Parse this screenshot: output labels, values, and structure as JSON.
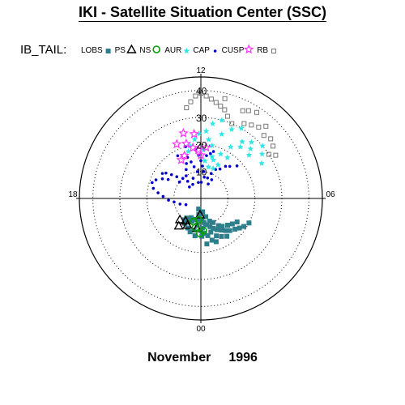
{
  "header": {
    "title": "IKI - Satellite Situation Center (SSC)"
  },
  "footer": {
    "month": "November",
    "year": "1996"
  },
  "chart_data": {
    "type": "scatter",
    "projection": "polar",
    "title": "IKI - Satellite Situation Center (SSC)",
    "legend_title": "IB_TAIL:",
    "legend_placement": "top",
    "radial_ticks": [
      "10",
      "20",
      "30",
      "40"
    ],
    "rlim": [
      0,
      45
    ],
    "grid": true,
    "angle_labels": [
      {
        "text": "12",
        "lt": 12
      },
      {
        "text": "18",
        "lt": 18
      },
      {
        "text": "06",
        "lt": 6
      },
      {
        "text": "00",
        "lt": 0
      }
    ],
    "colors": {
      "LOBS": "#2e7f8c",
      "PS": "#000000",
      "NS": "#00a000",
      "AUR": "#33e6e6",
      "CAP": "#0000c8",
      "CUSP": "#ff33ff",
      "RB": "#777777"
    },
    "series": [
      {
        "name": "LOBS",
        "marker": "square-filled",
        "points": [
          [
            0.8,
            4
          ],
          [
            0.5,
            6
          ],
          [
            0.2,
            8
          ],
          [
            23.8,
            8
          ],
          [
            23.5,
            9
          ],
          [
            23.2,
            10
          ],
          [
            22.8,
            11
          ],
          [
            22.5,
            12
          ],
          [
            22.2,
            13
          ],
          [
            21.8,
            14
          ],
          [
            21.5,
            15
          ],
          [
            21.2,
            16
          ],
          [
            20.8,
            17
          ],
          [
            20.5,
            18
          ],
          [
            20.2,
            19
          ],
          [
            19.8,
            20
          ],
          [
            23.5,
            5
          ],
          [
            23,
            7
          ],
          [
            22.6,
            9
          ],
          [
            22.2,
            10
          ],
          [
            21.8,
            12
          ],
          [
            21.5,
            13
          ],
          [
            21,
            14
          ],
          [
            20.6,
            15
          ],
          [
            20.2,
            16
          ],
          [
            0.5,
            10
          ],
          [
            0.8,
            12
          ],
          [
            1.2,
            13
          ],
          [
            1.6,
            12
          ],
          [
            2,
            10
          ],
          [
            2.4,
            9
          ],
          [
            0,
            12
          ],
          [
            23.6,
            13
          ],
          [
            23.3,
            14
          ],
          [
            23,
            16
          ],
          [
            22.7,
            17
          ],
          [
            0.3,
            6
          ],
          [
            0,
            5
          ],
          [
            23.8,
            11
          ],
          [
            1,
            8
          ],
          [
            1.4,
            9
          ],
          [
            1.8,
            8
          ],
          [
            22.9,
            13
          ],
          [
            22.5,
            15
          ],
          [
            22.1,
            16
          ],
          [
            21.7,
            17
          ],
          [
            0.6,
            14
          ],
          [
            23.9,
            14
          ],
          [
            23.5,
            17
          ],
          [
            2.2,
            11
          ],
          [
            2.5,
            10
          ]
        ]
      },
      {
        "name": "PS",
        "marker": "triangle-open",
        "points": [
          [
            0.5,
            11
          ],
          [
            1.8,
            11
          ],
          [
            2.3,
            10
          ],
          [
            0.2,
            6
          ],
          [
            3,
            11
          ],
          [
            2.6,
            13
          ]
        ]
      },
      {
        "name": "NS",
        "marker": "circle-open",
        "points": [
          [
            0.4,
            8
          ],
          [
            0.1,
            13
          ],
          [
            1.2,
            9
          ],
          [
            23.7,
            12
          ],
          [
            0.7,
            11
          ]
        ]
      },
      {
        "name": "AUR",
        "marker": "star-filled",
        "points": [
          [
            13.5,
            12
          ],
          [
            13.2,
            15
          ],
          [
            13.6,
            18
          ],
          [
            14,
            22
          ],
          [
            14.5,
            24
          ],
          [
            15,
            26
          ],
          [
            13,
            16
          ],
          [
            12.8,
            20
          ],
          [
            13.2,
            25
          ],
          [
            13.6,
            28
          ],
          [
            14,
            30
          ],
          [
            14.4,
            26
          ],
          [
            12.5,
            22
          ],
          [
            12.3,
            25
          ],
          [
            12.6,
            28
          ],
          [
            13,
            30
          ],
          [
            11.9,
            24
          ],
          [
            11.6,
            22
          ],
          [
            11.2,
            20
          ],
          [
            11,
            18
          ],
          [
            12.2,
            18
          ],
          [
            12.4,
            14
          ],
          [
            14.8,
            28
          ],
          [
            15.3,
            30
          ],
          [
            15.6,
            28
          ],
          [
            16,
            26
          ],
          [
            14.2,
            18
          ],
          [
            13.8,
            14
          ],
          [
            12.9,
            12
          ],
          [
            15.2,
            24
          ]
        ]
      },
      {
        "name": "CAP",
        "marker": "dot",
        "points": [
          [
            13.2,
            8
          ],
          [
            13.5,
            10
          ],
          [
            13.8,
            12
          ],
          [
            14.2,
            13
          ],
          [
            14.5,
            15
          ],
          [
            14.8,
            16
          ],
          [
            15.2,
            18
          ],
          [
            12.6,
            8
          ],
          [
            12.4,
            10
          ],
          [
            12.2,
            12
          ],
          [
            12,
            14
          ],
          [
            11.8,
            16
          ],
          [
            11.5,
            10
          ],
          [
            11.2,
            12
          ],
          [
            11,
            14
          ],
          [
            10.8,
            16
          ],
          [
            10.5,
            14
          ],
          [
            10.2,
            12
          ],
          [
            9.8,
            10
          ],
          [
            9.5,
            8
          ],
          [
            9.2,
            10
          ],
          [
            8.8,
            12
          ],
          [
            8.6,
            14
          ],
          [
            8.4,
            16
          ],
          [
            8.2,
            17
          ],
          [
            13.8,
            6
          ],
          [
            14,
            8
          ],
          [
            12.1,
            6
          ],
          [
            11.4,
            6
          ],
          [
            10.6,
            8
          ],
          [
            10,
            6
          ],
          [
            9,
            6
          ],
          [
            8.5,
            10
          ],
          [
            8,
            14
          ],
          [
            7.8,
            16
          ],
          [
            7.5,
            18
          ],
          [
            7.2,
            19
          ],
          [
            6.8,
            18
          ],
          [
            6.5,
            16
          ],
          [
            6.2,
            14
          ],
          [
            5.8,
            12
          ],
          [
            5.5,
            10
          ],
          [
            5,
            8
          ],
          [
            4.5,
            6
          ],
          [
            12.5,
            16
          ],
          [
            12.8,
            17
          ],
          [
            13,
            18
          ],
          [
            11.6,
            18
          ],
          [
            10.9,
            20
          ],
          [
            10.1,
            18
          ]
        ]
      },
      {
        "name": "CUSP",
        "marker": "star-open",
        "points": [
          [
            12,
            16
          ],
          [
            11.8,
            18
          ],
          [
            11.4,
            19
          ],
          [
            11,
            21
          ],
          [
            10.6,
            17
          ],
          [
            10.2,
            16
          ],
          [
            12.4,
            19
          ],
          [
            10.4,
            22
          ],
          [
            11.6,
            24
          ],
          [
            11,
            25
          ]
        ]
      },
      {
        "name": "RB",
        "marker": "square-open",
        "points": [
          [
            13.5,
            30
          ],
          [
            13.2,
            32
          ],
          [
            13,
            34
          ],
          [
            12.8,
            35
          ],
          [
            12.6,
            36
          ],
          [
            12.4,
            37
          ],
          [
            12.2,
            38
          ],
          [
            12,
            39
          ],
          [
            11.8,
            38
          ],
          [
            14,
            32
          ],
          [
            14.3,
            33
          ],
          [
            14.6,
            34
          ],
          [
            15,
            33
          ],
          [
            15.3,
            34
          ],
          [
            15.6,
            33
          ],
          [
            16,
            32
          ],
          [
            15.8,
            30
          ],
          [
            13.7,
            36
          ],
          [
            13.9,
            37
          ],
          [
            14.2,
            38
          ],
          [
            12.9,
            38
          ],
          [
            11.6,
            36
          ],
          [
            11.4,
            34
          ],
          [
            14.8,
            36
          ]
        ]
      }
    ]
  }
}
